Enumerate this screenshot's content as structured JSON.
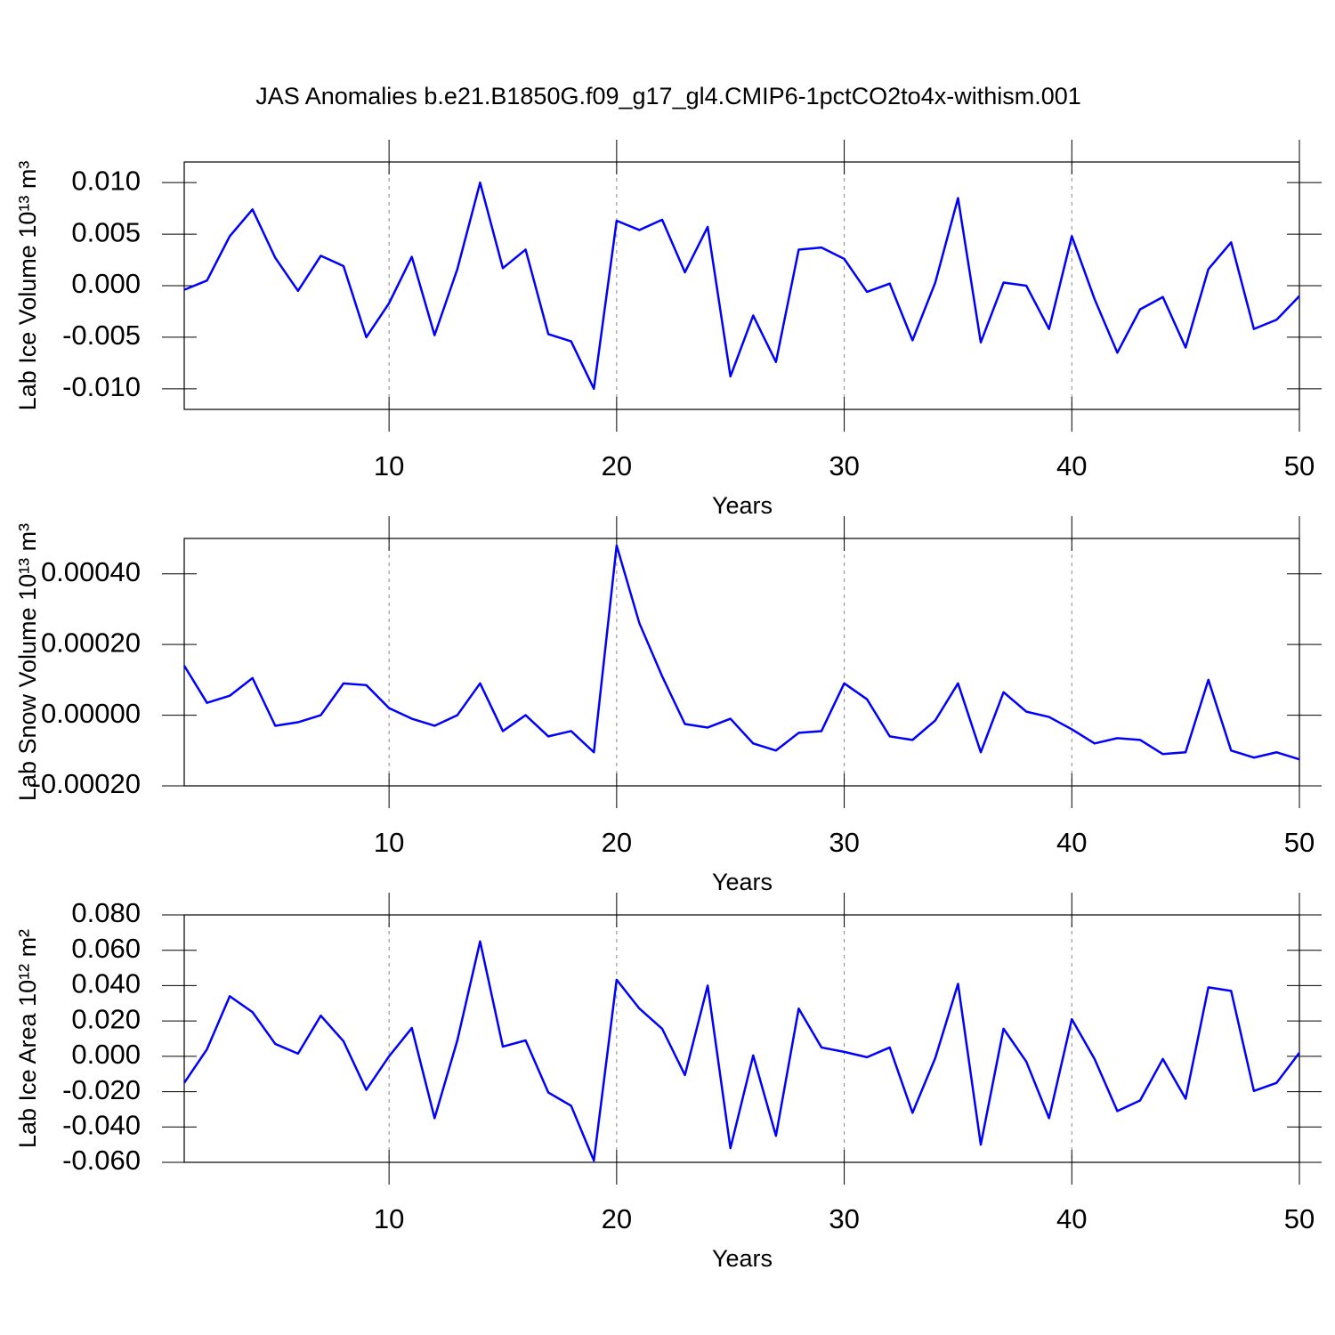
{
  "chart_data": [
    {
      "type": "line",
      "title": "JAS Anomalies b.e21.B1850G.f09_g17_gl4.CMIP6-1pctCO2to4x-withism.001",
      "xlabel": "Years",
      "ylabel": "Lab Ice Volume 10¹³ m³",
      "grid": "x",
      "xlim": [
        1,
        50
      ],
      "xticks": [
        10,
        20,
        30,
        40,
        50
      ],
      "ylim": [
        -0.012,
        0.012
      ],
      "yticks": [
        {
          "value": -0.01,
          "label": "-0.010"
        },
        {
          "value": -0.005,
          "label": "-0.005"
        },
        {
          "value": 0,
          "label": "0.000"
        },
        {
          "value": 0.005,
          "label": "0.005"
        },
        {
          "value": 0.01,
          "label": "0.010"
        }
      ],
      "x": [
        1,
        2,
        3,
        4,
        5,
        6,
        7,
        8,
        9,
        10,
        11,
        12,
        13,
        14,
        15,
        16,
        17,
        18,
        19,
        20,
        21,
        22,
        23,
        24,
        25,
        26,
        27,
        28,
        29,
        30,
        31,
        32,
        33,
        34,
        35,
        36,
        37,
        38,
        39,
        40,
        41,
        42,
        43,
        44,
        45,
        46,
        47,
        48,
        49,
        50
      ],
      "series": [
        {
          "color": "#0000ff",
          "values": [
            -0.0004,
            0.0005,
            0.0048,
            0.0074,
            0.0027,
            -0.0005,
            0.0029,
            0.0019,
            -0.005,
            -0.0017,
            0.0028,
            -0.0048,
            0.0016,
            0.01,
            0.0017,
            0.0035,
            -0.0047,
            -0.0054,
            -0.01,
            0.0063,
            0.0054,
            0.0064,
            0.0013,
            0.0057,
            -0.0088,
            -0.0029,
            -0.0074,
            0.0035,
            0.0037,
            0.0026,
            -0.0006,
            0.0002,
            -0.0053,
            0.0003,
            0.0085,
            -0.0055,
            0.0003,
            0.0,
            -0.0042,
            0.0048,
            -0.0013,
            -0.0065,
            -0.0023,
            -0.0011,
            -0.006,
            0.0016,
            0.0042,
            -0.0042,
            -0.0033,
            -0.001
          ]
        }
      ]
    },
    {
      "type": "line",
      "xlabel": "Years",
      "ylabel": "Lab Snow Volume 10¹³ m³",
      "grid": "x",
      "xlim": [
        1,
        50
      ],
      "xticks": [
        10,
        20,
        30,
        40,
        50
      ],
      "ylim": [
        -0.0002,
        0.0005
      ],
      "yticks": [
        {
          "value": -0.0002,
          "label": "-0.00020"
        },
        {
          "value": 0,
          "label": "0.00000"
        },
        {
          "value": 0.0002,
          "label": "0.00020"
        },
        {
          "value": 0.0004,
          "label": "0.00040"
        }
      ],
      "x": [
        1,
        2,
        3,
        4,
        5,
        6,
        7,
        8,
        9,
        10,
        11,
        12,
        13,
        14,
        15,
        16,
        17,
        18,
        19,
        20,
        21,
        22,
        23,
        24,
        25,
        26,
        27,
        28,
        29,
        30,
        31,
        32,
        33,
        34,
        35,
        36,
        37,
        38,
        39,
        40,
        41,
        42,
        43,
        44,
        45,
        46,
        47,
        48,
        49,
        50
      ],
      "series": [
        {
          "color": "#0000ff",
          "values": [
            0.00014,
            3.5e-05,
            5.5e-05,
            0.000105,
            -3e-05,
            -2e-05,
            0.0,
            9e-05,
            8.5e-05,
            2e-05,
            -1e-05,
            -3e-05,
            0.0,
            9e-05,
            -4.5e-05,
            0.0,
            -6e-05,
            -4.5e-05,
            -0.000105,
            0.00048,
            0.00026,
            0.00011,
            -2.5e-05,
            -3.5e-05,
            -1e-05,
            -8e-05,
            -0.0001,
            -5e-05,
            -4.5e-05,
            9e-05,
            4.5e-05,
            -6e-05,
            -7e-05,
            -1.5e-05,
            9e-05,
            -0.000105,
            6.5e-05,
            1e-05,
            -5e-06,
            -4e-05,
            -8e-05,
            -6.5e-05,
            -7e-05,
            -0.00011,
            -0.000105,
            0.0001,
            -0.0001,
            -0.00012,
            -0.000105,
            -0.000125
          ]
        }
      ]
    },
    {
      "type": "line",
      "xlabel": "Years",
      "ylabel": "Lab Ice Area 10¹² m²",
      "grid": "x",
      "xlim": [
        1,
        50
      ],
      "xticks": [
        10,
        20,
        30,
        40,
        50
      ],
      "ylim": [
        -0.06,
        0.08
      ],
      "yticks": [
        {
          "value": -0.06,
          "label": "-0.060"
        },
        {
          "value": -0.04,
          "label": "-0.040"
        },
        {
          "value": -0.02,
          "label": "-0.020"
        },
        {
          "value": 0,
          "label": "0.000"
        },
        {
          "value": 0.02,
          "label": "0.020"
        },
        {
          "value": 0.04,
          "label": "0.040"
        },
        {
          "value": 0.06,
          "label": "0.060"
        },
        {
          "value": 0.08,
          "label": "0.080"
        }
      ],
      "x": [
        1,
        2,
        3,
        4,
        5,
        6,
        7,
        8,
        9,
        10,
        11,
        12,
        13,
        14,
        15,
        16,
        17,
        18,
        19,
        20,
        21,
        22,
        23,
        24,
        25,
        26,
        27,
        28,
        29,
        30,
        31,
        32,
        33,
        34,
        35,
        36,
        37,
        38,
        39,
        40,
        41,
        42,
        43,
        44,
        45,
        46,
        47,
        48,
        49,
        50
      ],
      "series": [
        {
          "color": "#0000ff",
          "values": [
            -0.015,
            0.004,
            0.034,
            0.025,
            0.007,
            0.0015,
            0.023,
            0.0085,
            -0.019,
            0.0,
            0.016,
            -0.035,
            0.009,
            0.065,
            0.0055,
            0.009,
            -0.0205,
            -0.028,
            -0.059,
            0.0433,
            0.027,
            0.0156,
            -0.0106,
            0.04,
            -0.052,
            0.0005,
            -0.045,
            0.027,
            0.005,
            0.0025,
            -0.0005,
            0.005,
            -0.032,
            -0.001,
            0.041,
            -0.05,
            0.0156,
            -0.003,
            -0.035,
            0.021,
            -0.0015,
            -0.031,
            -0.025,
            -0.0015,
            -0.024,
            0.039,
            0.037,
            -0.0196,
            -0.015,
            0.002
          ]
        }
      ]
    }
  ]
}
